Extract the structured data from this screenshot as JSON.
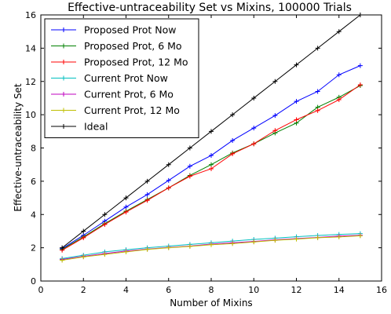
{
  "chart_data": {
    "type": "line",
    "title": "Effective-untraceability Set vs Mixins, 100000 Trials",
    "xlabel": "Number of Mixins",
    "ylabel": "Effective-untraceability Set",
    "xlim": [
      0,
      16
    ],
    "ylim": [
      0,
      16
    ],
    "xticks": [
      0,
      2,
      4,
      6,
      8,
      10,
      12,
      14,
      16
    ],
    "yticks": [
      0,
      2,
      4,
      6,
      8,
      10,
      12,
      14,
      16
    ],
    "grid": false,
    "legend_position": "top-left",
    "x": [
      1,
      2,
      3,
      4,
      5,
      6,
      7,
      8,
      9,
      10,
      11,
      12,
      13,
      14,
      15
    ],
    "series": [
      {
        "name": "Proposed Prot Now",
        "color": "#0000ff",
        "values": [
          1.95,
          2.75,
          3.6,
          4.45,
          5.2,
          6.05,
          6.9,
          7.55,
          8.45,
          9.2,
          9.95,
          10.8,
          11.4,
          12.4,
          12.95
        ]
      },
      {
        "name": "Proposed Prot, 6 Mo",
        "color": "#008000",
        "values": [
          1.9,
          2.65,
          3.45,
          4.2,
          4.9,
          5.6,
          6.35,
          7.0,
          7.7,
          8.25,
          8.9,
          9.5,
          10.45,
          11.05,
          11.75
        ]
      },
      {
        "name": "Proposed Prot, 12 Mo",
        "color": "#ff0000",
        "values": [
          1.85,
          2.6,
          3.4,
          4.15,
          4.85,
          5.6,
          6.3,
          6.75,
          7.65,
          8.25,
          9.05,
          9.7,
          10.25,
          10.9,
          11.8
        ]
      },
      {
        "name": "Current Prot Now",
        "color": "#00bfbf",
        "values": [
          1.35,
          1.55,
          1.75,
          1.88,
          2.0,
          2.1,
          2.2,
          2.3,
          2.4,
          2.5,
          2.58,
          2.66,
          2.74,
          2.8,
          2.85
        ]
      },
      {
        "name": "Current Prot, 6 Mo",
        "color": "#bf00bf",
        "values": [
          1.3,
          1.48,
          1.65,
          1.8,
          1.92,
          2.02,
          2.1,
          2.22,
          2.3,
          2.38,
          2.48,
          2.55,
          2.62,
          2.7,
          2.75
        ]
      },
      {
        "name": "Current Prot, 12 Mo",
        "color": "#bfbf00",
        "values": [
          1.25,
          1.45,
          1.6,
          1.75,
          1.9,
          2.0,
          2.08,
          2.18,
          2.25,
          2.35,
          2.45,
          2.52,
          2.6,
          2.65,
          2.72
        ]
      },
      {
        "name": "Ideal",
        "color": "#000000",
        "values": [
          2,
          3,
          4,
          5,
          6,
          7,
          8,
          9,
          10,
          11,
          12,
          13,
          14,
          15,
          16
        ]
      }
    ]
  }
}
